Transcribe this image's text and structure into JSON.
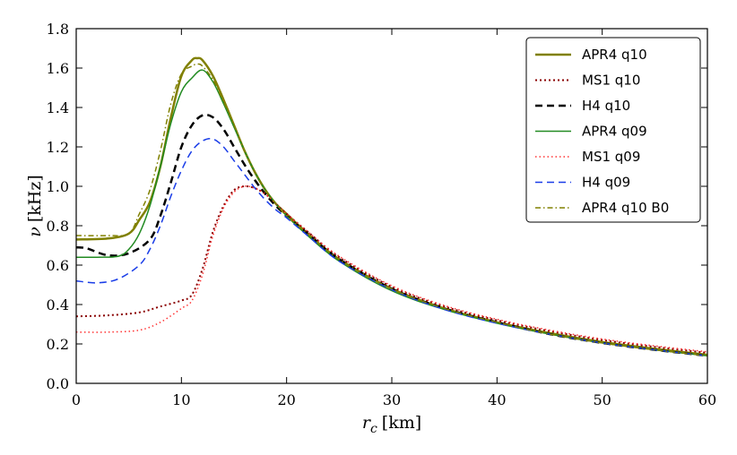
{
  "chart_data": {
    "type": "line",
    "title": "",
    "xlabel_symbol": "r",
    "xlabel_sub": "c",
    "xlabel_unit": "[km]",
    "ylabel_symbol": "ν",
    "ylabel_unit": "[kHz]",
    "xlim": [
      0,
      60
    ],
    "ylim": [
      0.0,
      1.8
    ],
    "xticks": [
      0,
      10,
      20,
      30,
      40,
      50,
      60
    ],
    "yticks": [
      0.0,
      0.2,
      0.4,
      0.6,
      0.8,
      1.0,
      1.2,
      1.4,
      1.6,
      1.8
    ],
    "xtick_labels": [
      "0",
      "10",
      "20",
      "30",
      "40",
      "50",
      "60"
    ],
    "ytick_labels": [
      "0.0",
      "0.2",
      "0.4",
      "0.6",
      "0.8",
      "1.0",
      "1.2",
      "1.4",
      "1.6",
      "1.8"
    ],
    "grid": false,
    "legend_position": "top-right",
    "series": [
      {
        "name": "APR4 q10",
        "color": "#808000",
        "dash": "solid",
        "width": 2.5,
        "points": [
          [
            0,
            0.73
          ],
          [
            3,
            0.735
          ],
          [
            5,
            0.76
          ],
          [
            6,
            0.83
          ],
          [
            7,
            0.92
          ],
          [
            8,
            1.1
          ],
          [
            9,
            1.35
          ],
          [
            10,
            1.56
          ],
          [
            11,
            1.64
          ],
          [
            11.5,
            1.65
          ],
          [
            12,
            1.64
          ],
          [
            13,
            1.56
          ],
          [
            14,
            1.44
          ],
          [
            15,
            1.31
          ],
          [
            16,
            1.18
          ],
          [
            17,
            1.07
          ],
          [
            18,
            0.98
          ],
          [
            19,
            0.91
          ],
          [
            20,
            0.86
          ],
          [
            22,
            0.76
          ],
          [
            25,
            0.63
          ],
          [
            30,
            0.48
          ],
          [
            35,
            0.38
          ],
          [
            40,
            0.31
          ],
          [
            45,
            0.255
          ],
          [
            50,
            0.21
          ],
          [
            55,
            0.175
          ],
          [
            60,
            0.145
          ]
        ]
      },
      {
        "name": "MS1 q10",
        "color": "#8b0000",
        "dash": "2,3",
        "width": 2,
        "points": [
          [
            0,
            0.34
          ],
          [
            3,
            0.345
          ],
          [
            6,
            0.36
          ],
          [
            8,
            0.39
          ],
          [
            10,
            0.42
          ],
          [
            11,
            0.45
          ],
          [
            12,
            0.58
          ],
          [
            13,
            0.77
          ],
          [
            14,
            0.9
          ],
          [
            15,
            0.98
          ],
          [
            16,
            1.0
          ],
          [
            17,
            0.99
          ],
          [
            18,
            0.96
          ],
          [
            19,
            0.91
          ],
          [
            20,
            0.86
          ],
          [
            22,
            0.77
          ],
          [
            25,
            0.64
          ],
          [
            30,
            0.49
          ],
          [
            35,
            0.39
          ],
          [
            40,
            0.32
          ],
          [
            45,
            0.265
          ],
          [
            50,
            0.22
          ],
          [
            55,
            0.185
          ],
          [
            60,
            0.155
          ]
        ]
      },
      {
        "name": "H4 q10",
        "color": "#000000",
        "dash": "8,5",
        "width": 2.5,
        "points": [
          [
            0,
            0.69
          ],
          [
            1,
            0.685
          ],
          [
            3,
            0.65
          ],
          [
            5,
            0.66
          ],
          [
            7,
            0.73
          ],
          [
            8,
            0.85
          ],
          [
            9,
            1.02
          ],
          [
            10,
            1.2
          ],
          [
            11,
            1.31
          ],
          [
            12,
            1.36
          ],
          [
            13,
            1.35
          ],
          [
            14,
            1.29
          ],
          [
            15,
            1.2
          ],
          [
            16,
            1.11
          ],
          [
            17,
            1.03
          ],
          [
            18,
            0.96
          ],
          [
            19,
            0.9
          ],
          [
            20,
            0.85
          ],
          [
            22,
            0.76
          ],
          [
            25,
            0.63
          ],
          [
            30,
            0.48
          ],
          [
            35,
            0.38
          ],
          [
            40,
            0.31
          ],
          [
            45,
            0.25
          ],
          [
            50,
            0.205
          ],
          [
            55,
            0.17
          ],
          [
            60,
            0.14
          ]
        ]
      },
      {
        "name": "APR4 q09",
        "color": "#228b22",
        "dash": "solid",
        "width": 1.5,
        "points": [
          [
            0,
            0.64
          ],
          [
            2,
            0.64
          ],
          [
            4,
            0.645
          ],
          [
            5,
            0.68
          ],
          [
            6,
            0.76
          ],
          [
            7,
            0.9
          ],
          [
            8,
            1.1
          ],
          [
            9,
            1.32
          ],
          [
            10,
            1.48
          ],
          [
            11,
            1.55
          ],
          [
            12,
            1.59
          ],
          [
            13,
            1.53
          ],
          [
            14,
            1.42
          ],
          [
            15,
            1.3
          ],
          [
            16,
            1.18
          ],
          [
            17,
            1.07
          ],
          [
            18,
            0.98
          ],
          [
            19,
            0.91
          ],
          [
            20,
            0.85
          ],
          [
            22,
            0.75
          ],
          [
            25,
            0.62
          ],
          [
            30,
            0.47
          ],
          [
            35,
            0.375
          ],
          [
            40,
            0.305
          ],
          [
            45,
            0.25
          ],
          [
            50,
            0.205
          ],
          [
            55,
            0.17
          ],
          [
            60,
            0.14
          ]
        ]
      },
      {
        "name": "MS1 q09",
        "color": "#ff3333",
        "dash": "1.5,3",
        "width": 1.5,
        "points": [
          [
            0,
            0.26
          ],
          [
            3,
            0.26
          ],
          [
            6,
            0.27
          ],
          [
            8,
            0.31
          ],
          [
            10,
            0.38
          ],
          [
            11,
            0.42
          ],
          [
            12,
            0.55
          ],
          [
            13,
            0.75
          ],
          [
            14,
            0.89
          ],
          [
            15,
            0.97
          ],
          [
            16,
            1.0
          ],
          [
            17,
            0.99
          ],
          [
            18,
            0.96
          ],
          [
            19,
            0.91
          ],
          [
            20,
            0.86
          ],
          [
            22,
            0.77
          ],
          [
            25,
            0.645
          ],
          [
            30,
            0.495
          ],
          [
            35,
            0.395
          ],
          [
            40,
            0.325
          ],
          [
            45,
            0.27
          ],
          [
            50,
            0.225
          ],
          [
            55,
            0.19
          ],
          [
            60,
            0.16
          ]
        ]
      },
      {
        "name": "H4 q09",
        "color": "#1a3de8",
        "dash": "8,5",
        "width": 1.5,
        "points": [
          [
            0,
            0.52
          ],
          [
            2,
            0.51
          ],
          [
            4,
            0.53
          ],
          [
            6,
            0.6
          ],
          [
            7,
            0.68
          ],
          [
            8,
            0.8
          ],
          [
            9,
            0.95
          ],
          [
            10,
            1.08
          ],
          [
            11,
            1.18
          ],
          [
            12,
            1.23
          ],
          [
            13,
            1.24
          ],
          [
            14,
            1.2
          ],
          [
            15,
            1.13
          ],
          [
            16,
            1.06
          ],
          [
            17,
            0.99
          ],
          [
            18,
            0.93
          ],
          [
            19,
            0.88
          ],
          [
            20,
            0.84
          ],
          [
            22,
            0.75
          ],
          [
            25,
            0.62
          ],
          [
            30,
            0.475
          ],
          [
            35,
            0.375
          ],
          [
            40,
            0.305
          ],
          [
            45,
            0.25
          ],
          [
            50,
            0.205
          ],
          [
            55,
            0.17
          ],
          [
            60,
            0.14
          ]
        ]
      },
      {
        "name": "APR4 q10 B0",
        "color": "#808000",
        "dash": "6,3,1.5,3",
        "width": 1.5,
        "points": [
          [
            0,
            0.75
          ],
          [
            3,
            0.75
          ],
          [
            5,
            0.76
          ],
          [
            6,
            0.86
          ],
          [
            7,
            0.98
          ],
          [
            8,
            1.18
          ],
          [
            9,
            1.42
          ],
          [
            10,
            1.57
          ],
          [
            11,
            1.61
          ],
          [
            11.5,
            1.62
          ],
          [
            12,
            1.61
          ],
          [
            13,
            1.54
          ],
          [
            14,
            1.43
          ],
          [
            15,
            1.31
          ],
          [
            16,
            1.18
          ],
          [
            17,
            1.07
          ],
          [
            18,
            0.98
          ],
          [
            19,
            0.91
          ],
          [
            20,
            0.85
          ],
          [
            22,
            0.76
          ],
          [
            25,
            0.63
          ],
          [
            30,
            0.48
          ],
          [
            35,
            0.38
          ],
          [
            40,
            0.31
          ],
          [
            45,
            0.25
          ],
          [
            50,
            0.205
          ],
          [
            55,
            0.17
          ],
          [
            60,
            0.14
          ]
        ]
      }
    ]
  }
}
